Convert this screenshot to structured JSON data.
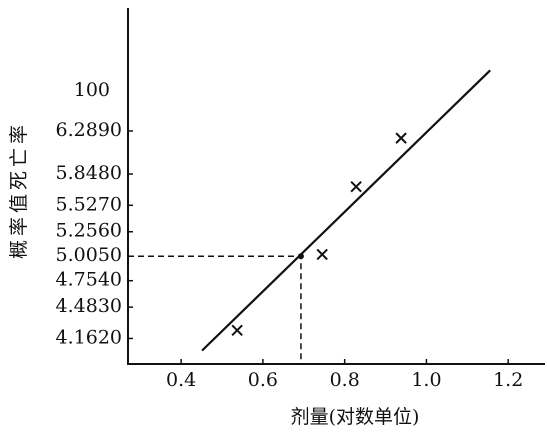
{
  "chart_data": {
    "type": "scatter",
    "x_label": "剂量(对数单位)",
    "y_label": "概率值死亡率",
    "y_top_label": "100",
    "xlim": [
      0.27,
      1.29
    ],
    "ylim": [
      3.9,
      7.55
    ],
    "xticks": [
      {
        "value": 0.4,
        "label": "0.4"
      },
      {
        "value": 0.6,
        "label": "0.6"
      },
      {
        "value": 0.8,
        "label": "0.8"
      },
      {
        "value": 1.0,
        "label": "1.0"
      },
      {
        "value": 1.2,
        "label": "1.2"
      }
    ],
    "yticks": [
      {
        "value": 4.162,
        "label": "4.1620"
      },
      {
        "value": 4.483,
        "label": "4.4830"
      },
      {
        "value": 4.754,
        "label": "4.7540"
      },
      {
        "value": 5.005,
        "label": "5.0050"
      },
      {
        "value": 5.256,
        "label": "5.2560"
      },
      {
        "value": 5.527,
        "label": "5.5270"
      },
      {
        "value": 5.848,
        "label": "5.8480"
      },
      {
        "value": 6.289,
        "label": "6.2890"
      }
    ],
    "x": [
      0.537,
      0.745,
      0.828,
      0.938
    ],
    "values": [
      4.245,
      5.023,
      5.718,
      6.216
    ],
    "color": "#111111",
    "fit_line": {
      "x": [
        0.451,
        1.156
      ],
      "y": [
        4.037,
        6.911
      ]
    },
    "reference": {
      "x": 0.693,
      "y": 5.005
    }
  }
}
